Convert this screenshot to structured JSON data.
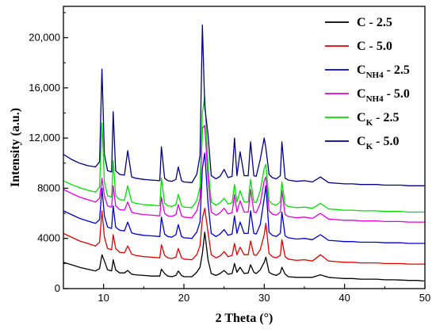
{
  "chart_data": {
    "type": "line",
    "xlabel": "2 Theta (°)",
    "ylabel": "Intensity (a.u.)",
    "xlim": [
      5,
      50
    ],
    "ylim": [
      0,
      22500
    ],
    "x_ticks": [
      10,
      20,
      30,
      40,
      50
    ],
    "y_ticks": [
      0,
      4000,
      8000,
      12000,
      16000,
      20000
    ],
    "y_tick_labels": [
      "0",
      "4000",
      "8000",
      "12,000",
      "16,000",
      "20,000"
    ],
    "legend_position": "top-right",
    "grid": false,
    "series": [
      {
        "name": "C - 2.5",
        "legend_main": "C - 2.5",
        "legend_sub": "",
        "legend_rest": "",
        "color": "#000000",
        "x": [
          5,
          6,
          7,
          8,
          9,
          9.5,
          9.8,
          10.1,
          10.5,
          11,
          11.2,
          11.5,
          12,
          12.6,
          13,
          13.5,
          14,
          15,
          16,
          17,
          17.2,
          17.6,
          18,
          18.5,
          19,
          19.3,
          19.7,
          20,
          21,
          21.6,
          22,
          22.3,
          22.6,
          23,
          23.4,
          24,
          24.5,
          25,
          25.5,
          26,
          26.3,
          26.6,
          27,
          27.5,
          28,
          28.3,
          28.7,
          29,
          29.5,
          30,
          30.2,
          30.6,
          31,
          31.5,
          32,
          32.2,
          32.6,
          33,
          34,
          35,
          36,
          37,
          38,
          39,
          40,
          41,
          42,
          43,
          44,
          45,
          46,
          47,
          48,
          49,
          50
        ],
        "y": [
          2100,
          1900,
          1700,
          1550,
          1400,
          1600,
          2700,
          2200,
          1500,
          1400,
          2300,
          1500,
          1250,
          1250,
          1450,
          1150,
          1100,
          1050,
          1000,
          1000,
          1550,
          1200,
          1000,
          950,
          1050,
          1400,
          1050,
          950,
          950,
          1300,
          1700,
          2800,
          4500,
          2300,
          1200,
          1050,
          1200,
          1450,
          1150,
          1200,
          2000,
          1300,
          1700,
          1200,
          1250,
          1900,
          1300,
          1200,
          1500,
          2100,
          2500,
          1300,
          1150,
          1050,
          1250,
          1700,
          1150,
          950,
          900,
          900,
          900,
          1100,
          900,
          850,
          800,
          800,
          750,
          750,
          750,
          700,
          700,
          680,
          650,
          650,
          600
        ]
      },
      {
        "name": "C - 5.0",
        "legend_main": "C - 5.0",
        "legend_sub": "",
        "legend_rest": "",
        "color": "#e00000",
        "x": [
          5,
          6,
          7,
          8,
          9,
          9.5,
          9.8,
          10.1,
          10.5,
          11,
          11.2,
          11.5,
          12,
          12.6,
          13,
          13.5,
          14,
          15,
          16,
          17,
          17.2,
          17.6,
          18,
          18.5,
          19,
          19.3,
          19.7,
          20,
          21,
          21.6,
          22,
          22.3,
          22.6,
          23,
          23.4,
          24,
          24.5,
          25,
          25.5,
          26,
          26.3,
          26.6,
          27,
          27.5,
          28,
          28.3,
          28.7,
          29,
          29.5,
          30,
          30.2,
          30.6,
          31,
          31.5,
          32,
          32.2,
          32.6,
          33,
          34,
          35,
          36,
          37,
          38,
          39,
          40,
          41,
          42,
          43,
          44,
          45,
          46,
          47,
          48,
          49,
          50
        ],
        "y": [
          4400,
          4100,
          3800,
          3600,
          3400,
          3700,
          6200,
          4100,
          3200,
          3100,
          4300,
          3200,
          2900,
          2850,
          3400,
          2750,
          2650,
          2550,
          2500,
          2450,
          3500,
          2650,
          2450,
          2400,
          2500,
          3200,
          2450,
          2350,
          2300,
          2700,
          3400,
          5600,
          6400,
          4500,
          2700,
          2450,
          2600,
          2950,
          2550,
          2650,
          3600,
          2700,
          3300,
          2700,
          2700,
          3800,
          2700,
          2650,
          3100,
          4300,
          5200,
          2800,
          2550,
          2450,
          2650,
          3900,
          2550,
          2350,
          2250,
          2300,
          2200,
          2700,
          2200,
          2150,
          2100,
          2100,
          2050,
          2050,
          2050,
          2000,
          2000,
          2000,
          1950,
          1950,
          1950
        ]
      },
      {
        "name": "C_NH4 - 2.5",
        "legend_main": "C",
        "legend_sub": "NH4",
        "legend_rest": " - 2.5",
        "color": "#0000d0",
        "x": [
          5,
          6,
          7,
          8,
          9,
          9.5,
          9.8,
          10.1,
          10.5,
          11,
          11.2,
          11.5,
          12,
          12.6,
          13,
          13.5,
          14,
          15,
          16,
          17,
          17.2,
          17.6,
          18,
          18.5,
          19,
          19.3,
          19.7,
          20,
          21,
          21.6,
          22,
          22.3,
          22.6,
          23,
          23.4,
          24,
          24.5,
          25,
          25.5,
          26,
          26.3,
          26.6,
          27,
          27.5,
          28,
          28.3,
          28.7,
          29,
          29.5,
          30,
          30.2,
          30.6,
          31,
          31.5,
          32,
          32.2,
          32.6,
          33,
          34,
          35,
          36,
          37,
          38,
          39,
          40,
          41,
          42,
          43,
          44,
          45,
          46,
          47,
          48,
          49,
          50
        ],
        "y": [
          6200,
          5900,
          5600,
          5400,
          5200,
          5500,
          8000,
          5800,
          4900,
          4800,
          6600,
          4900,
          4650,
          4600,
          5300,
          4450,
          4350,
          4250,
          4200,
          4150,
          5700,
          4350,
          4150,
          4100,
          4300,
          5100,
          4150,
          4050,
          4000,
          4500,
          5300,
          9600,
          10800,
          6800,
          4400,
          4150,
          4350,
          4700,
          4250,
          4350,
          5800,
          4400,
          5300,
          4400,
          4400,
          6200,
          4400,
          4350,
          5100,
          7200,
          8200,
          4500,
          4250,
          4150,
          4400,
          6100,
          4200,
          4050,
          3950,
          4000,
          3900,
          4300,
          3850,
          3800,
          3750,
          3750,
          3700,
          3700,
          3700,
          3650,
          3650,
          3650,
          3600,
          3600,
          3600
        ]
      },
      {
        "name": "C_NH4 - 5.0",
        "legend_main": "C",
        "legend_sub": "NH4",
        "legend_rest": " - 5.0",
        "color": "#e000e0",
        "x": [
          5,
          6,
          7,
          8,
          9,
          9.5,
          9.8,
          10.1,
          10.5,
          11,
          11.2,
          11.5,
          12,
          12.6,
          13,
          13.5,
          14,
          15,
          16,
          17,
          17.2,
          17.6,
          18,
          18.5,
          19,
          19.3,
          19.7,
          20,
          21,
          21.6,
          22,
          22.3,
          22.6,
          23,
          23.4,
          24,
          24.5,
          25,
          25.5,
          26,
          26.3,
          26.6,
          27,
          27.5,
          28,
          28.3,
          28.7,
          29,
          29.5,
          30,
          30.2,
          30.6,
          31,
          31.5,
          32,
          32.2,
          32.6,
          33,
          34,
          35,
          36,
          37,
          38,
          39,
          40,
          41,
          42,
          43,
          44,
          45,
          46,
          47,
          48,
          49,
          50
        ],
        "y": [
          7900,
          7600,
          7300,
          7100,
          6900,
          7200,
          8800,
          7400,
          6600,
          6500,
          8200,
          6600,
          6300,
          6250,
          6900,
          6100,
          6000,
          5900,
          5850,
          5800,
          7300,
          6000,
          5800,
          5750,
          5900,
          6700,
          5800,
          5700,
          5650,
          6200,
          7200,
          12800,
          13000,
          8800,
          6100,
          5850,
          6050,
          6400,
          5950,
          6050,
          7500,
          6100,
          7000,
          6100,
          6100,
          7900,
          6100,
          6050,
          6800,
          8600,
          8900,
          6200,
          5950,
          5850,
          6100,
          7800,
          5900,
          5750,
          5650,
          5700,
          5600,
          6000,
          5550,
          5500,
          5450,
          5450,
          5400,
          5400,
          5400,
          5350,
          5350,
          5350,
          5300,
          5300,
          5300
        ]
      },
      {
        "name": "C_K - 2.5",
        "legend_main": "C",
        "legend_sub": "K",
        "legend_rest": " - 2.5",
        "color": "#00e000",
        "x": [
          5,
          6,
          7,
          8,
          9,
          9.5,
          9.8,
          10.1,
          10.5,
          11,
          11.2,
          11.5,
          12,
          12.6,
          13,
          13.5,
          14,
          15,
          16,
          17,
          17.2,
          17.6,
          18,
          18.5,
          19,
          19.3,
          19.7,
          20,
          21,
          21.6,
          22,
          22.3,
          22.6,
          23,
          23.4,
          24,
          24.5,
          25,
          25.5,
          26,
          26.3,
          26.6,
          27,
          27.5,
          28,
          28.3,
          28.7,
          29,
          29.5,
          30,
          30.2,
          30.6,
          31,
          31.5,
          32,
          32.2,
          32.6,
          33,
          34,
          35,
          36,
          37,
          38,
          39,
          40,
          41,
          42,
          43,
          44,
          45,
          46,
          47,
          48,
          49,
          50
        ],
        "y": [
          8600,
          8300,
          8050,
          7850,
          7700,
          8100,
          13200,
          8500,
          7400,
          7300,
          10200,
          7400,
          7100,
          7050,
          8200,
          6900,
          6800,
          6700,
          6650,
          6600,
          8800,
          6800,
          6600,
          6550,
          6700,
          7500,
          6600,
          6500,
          6450,
          7000,
          8100,
          14000,
          15300,
          9800,
          6900,
          6650,
          6850,
          7200,
          6750,
          6850,
          8300,
          6900,
          7800,
          6900,
          6900,
          8700,
          6900,
          6850,
          7800,
          9600,
          9900,
          7000,
          6750,
          6650,
          6900,
          8500,
          6700,
          6550,
          6450,
          6500,
          6400,
          6800,
          6350,
          6300,
          6250,
          6250,
          6200,
          6200,
          6200,
          6150,
          6150,
          6150,
          6100,
          6100,
          6100
        ]
      },
      {
        "name": "C_K - 5.0",
        "legend_main": "C",
        "legend_sub": "K",
        "legend_rest": " - 5.0",
        "color": "#000080",
        "x": [
          5,
          6,
          7,
          8,
          9,
          9.5,
          9.8,
          10.1,
          10.5,
          11,
          11.2,
          11.5,
          12,
          12.6,
          13,
          13.5,
          14,
          15,
          16,
          17,
          17.2,
          17.6,
          18,
          18.5,
          19,
          19.3,
          19.7,
          20,
          21,
          21.6,
          22,
          22.3,
          22.6,
          23,
          23.4,
          24,
          24.5,
          25,
          25.5,
          26,
          26.3,
          26.6,
          27,
          27.5,
          28,
          28.3,
          28.7,
          29,
          29.5,
          30,
          30.2,
          30.6,
          31,
          31.5,
          32,
          32.2,
          32.6,
          33,
          34,
          35,
          36,
          37,
          38,
          39,
          40,
          41,
          42,
          43,
          44,
          45,
          46,
          47,
          48,
          49,
          50
        ],
        "y": [
          10700,
          10300,
          10000,
          9800,
          9700,
          10100,
          17500,
          10700,
          9400,
          9300,
          14100,
          9400,
          9100,
          9050,
          11000,
          8900,
          8800,
          8700,
          8650,
          8600,
          11300,
          8800,
          8600,
          8550,
          8700,
          9700,
          8600,
          8500,
          8450,
          9100,
          10600,
          21000,
          14500,
          12300,
          9000,
          8750,
          8950,
          9500,
          8850,
          8950,
          12000,
          9000,
          10900,
          9000,
          9000,
          11700,
          9000,
          8950,
          10300,
          12000,
          11200,
          9100,
          8850,
          8750,
          9000,
          11700,
          8800,
          8650,
          8550,
          8600,
          8500,
          8900,
          8450,
          8400,
          8350,
          8350,
          8300,
          8300,
          8300,
          8250,
          8250,
          8250,
          8200,
          8200,
          8200
        ]
      }
    ]
  }
}
